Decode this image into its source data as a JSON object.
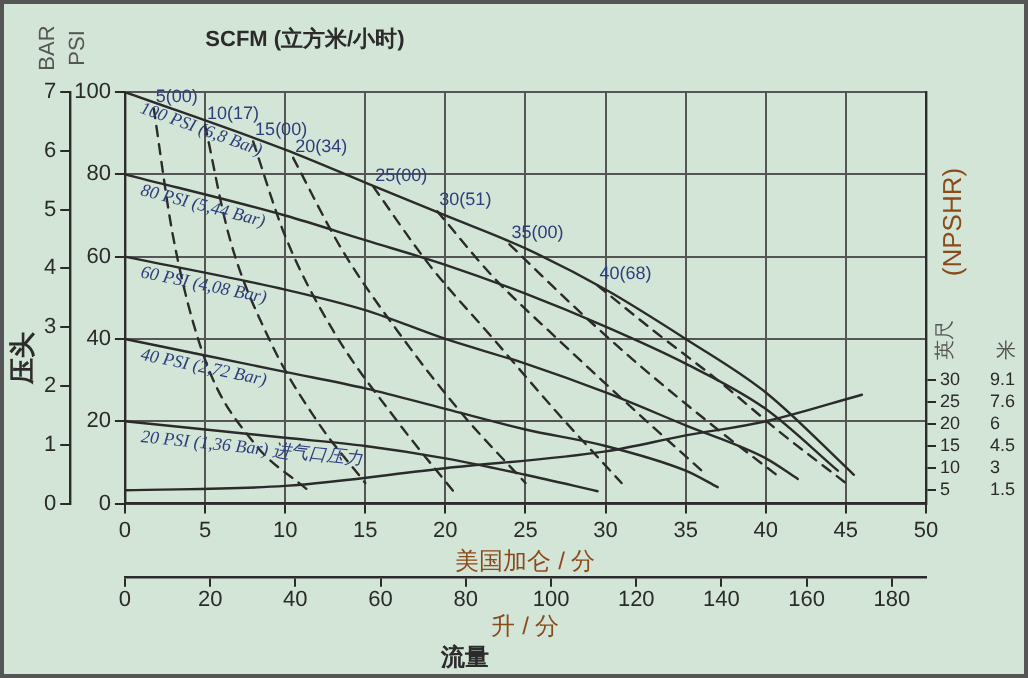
{
  "chart_data": {
    "type": "line",
    "title": "SCFM (立方米/小时)",
    "xlabel": "美国加仑 / 分",
    "x2label": "升 / 分",
    "ylabel": "PSI",
    "y2label": "BAR",
    "y3label": "英尺",
    "annotations": [
      "压头",
      "(NPSHR)",
      "流量",
      "米",
      "1.5",
      "3",
      "4.5",
      "6",
      "7.6",
      "9.1"
    ],
    "xlim": [
      0,
      50
    ],
    "xticks": [
      0,
      5,
      10,
      15,
      20,
      25,
      30,
      35,
      40,
      45,
      50
    ],
    "x2lim": [
      0,
      188
    ],
    "x2ticks": [
      0,
      20,
      40,
      60,
      80,
      100,
      120,
      140,
      160,
      180
    ],
    "ylim": [
      0,
      100
    ],
    "yticks": [
      0,
      20,
      40,
      60,
      80,
      100
    ],
    "y2lim": [
      0,
      7
    ],
    "y2ticks": [
      0,
      1,
      2,
      3,
      4,
      5,
      6,
      7
    ],
    "y3lim": [
      2,
      95
    ],
    "y3ticks": [
      5,
      10,
      15,
      20,
      25,
      30
    ],
    "grid": true,
    "legend": false,
    "marker": "none",
    "series": [
      {
        "name": "100 PSI (6,8 Bar)",
        "color": "#2b2b2b",
        "line_style": "solid",
        "x": [
          0,
          10,
          15,
          20,
          25,
          30,
          35,
          40,
          45.5
        ],
        "values": [
          100,
          86,
          78,
          70,
          62,
          52,
          40,
          27,
          7
        ]
      },
      {
        "name": "80 PSI (5,44 Bar)",
        "color": "#2b2b2b",
        "line_style": "solid",
        "x": [
          0,
          10,
          15,
          20,
          25,
          30,
          35,
          40,
          44.5
        ],
        "values": [
          80,
          70,
          64,
          58,
          51,
          43,
          34,
          23,
          8
        ]
      },
      {
        "name": "60 PSI (4,08 Bar)",
        "color": "#2b2b2b",
        "line_style": "solid",
        "x": [
          0,
          10,
          15,
          20,
          25,
          30,
          35,
          40,
          42
        ],
        "values": [
          60,
          52,
          47,
          40,
          34,
          27,
          19,
          11,
          6
        ]
      },
      {
        "name": "40 PSI (2,72 Bar)",
        "color": "#2b2b2b",
        "line_style": "solid",
        "x": [
          0,
          10,
          15,
          20,
          25,
          30,
          35,
          37
        ],
        "values": [
          40,
          32,
          28,
          23,
          18,
          14,
          8,
          4
        ]
      },
      {
        "name": "20 PSI (1,36 Bar) 进气口压力",
        "color": "#2b2b2b",
        "line_style": "solid",
        "x": [
          0,
          10,
          15,
          20,
          25,
          29.5
        ],
        "values": [
          20,
          16,
          14,
          11,
          7,
          3
        ]
      },
      {
        "color": "#2b2b2b",
        "line_style": "solid",
        "axis": "y3",
        "x": [
          0,
          10,
          20,
          30,
          35,
          40,
          46
        ],
        "values": [
          5,
          6,
          10,
          13.8,
          17.4,
          20.6,
          26.6
        ]
      },
      {
        "name": "5(00)",
        "color": "#2b2b2b",
        "line_style": "dashed",
        "x": [
          1.8,
          3,
          5,
          8,
          11.5
        ],
        "values": [
          96,
          65,
          35,
          15,
          3
        ]
      },
      {
        "name": "10(17)",
        "color": "#2b2b2b",
        "line_style": "dashed",
        "x": [
          5,
          6.5,
          9,
          12,
          15
        ],
        "values": [
          92,
          65,
          40,
          20,
          5
        ]
      },
      {
        "name": "15(00)",
        "color": "#2b2b2b",
        "line_style": "dashed",
        "x": [
          8,
          10,
          13,
          17,
          20.5
        ],
        "values": [
          88,
          65,
          42,
          20,
          3
        ]
      },
      {
        "name": "20(34)",
        "color": "#2b2b2b",
        "line_style": "dashed",
        "x": [
          10.5,
          13.5,
          17,
          21,
          25
        ],
        "values": [
          84,
          62,
          42,
          22,
          5
        ]
      },
      {
        "name": "25(00)",
        "color": "#2b2b2b",
        "line_style": "dashed",
        "x": [
          15.5,
          19,
          23,
          27,
          31
        ],
        "values": [
          77,
          58,
          40,
          22,
          5
        ]
      },
      {
        "name": "30(51)",
        "color": "#2b2b2b",
        "line_style": "dashed",
        "x": [
          19.5,
          23,
          27,
          32,
          36
        ],
        "values": [
          71,
          55,
          40,
          22,
          8
        ]
      },
      {
        "name": "35(00)",
        "color": "#2b2b2b",
        "line_style": "dashed",
        "x": [
          24,
          28,
          32,
          37,
          41
        ],
        "values": [
          63,
          48,
          34,
          18,
          6
        ]
      },
      {
        "name": "40(68)",
        "color": "#2b2b2b",
        "line_style": "dashed",
        "x": [
          29.5,
          33,
          37,
          41,
          45
        ],
        "values": [
          53,
          42,
          30,
          17,
          5
        ]
      }
    ]
  }
}
